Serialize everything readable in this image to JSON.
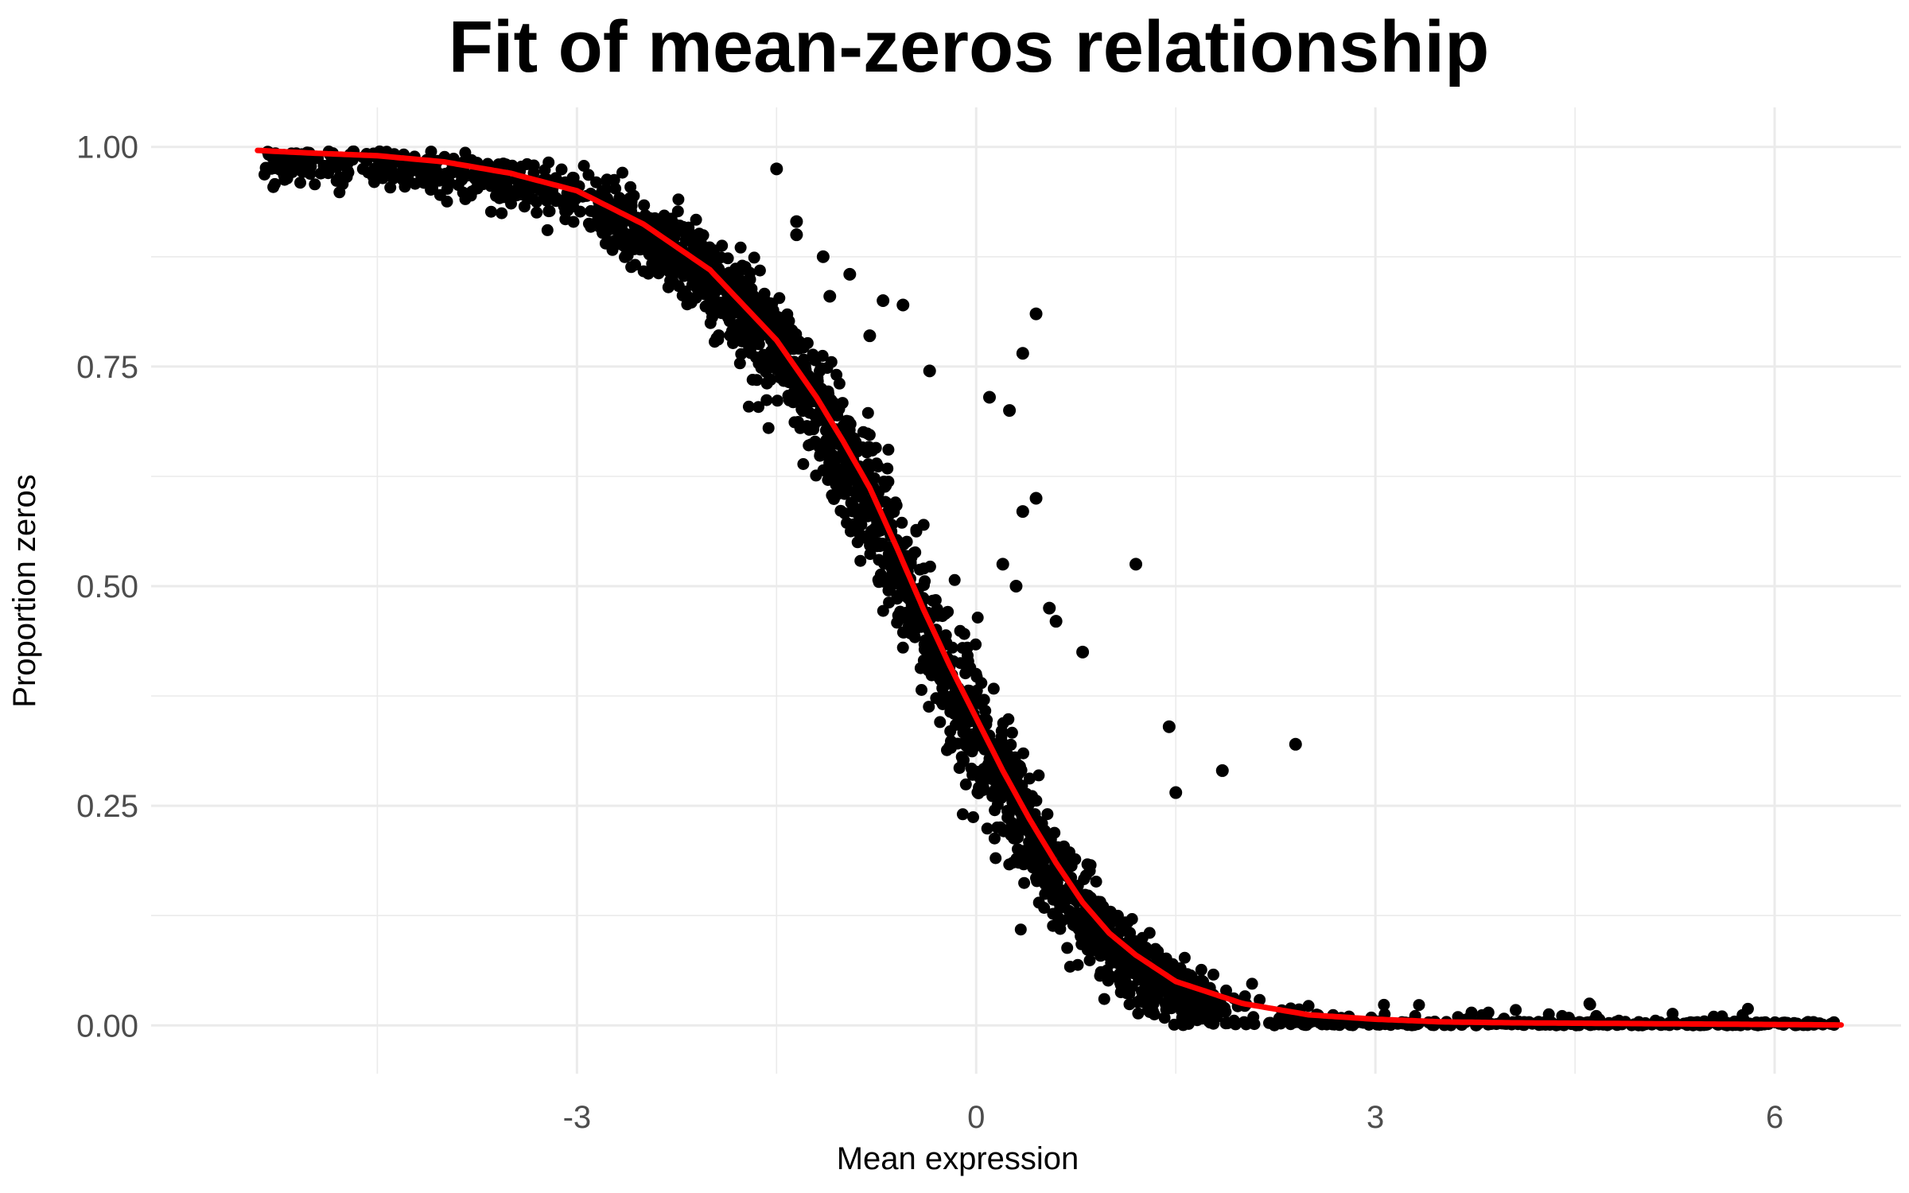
{
  "chart_data": {
    "type": "scatter",
    "title": "Fit of mean-zeros relationship",
    "xlabel": "Mean expression",
    "ylabel": "Proportion zeros",
    "xlim": [
      -6.2,
      6.95
    ],
    "ylim": [
      -0.055,
      1.045
    ],
    "x_ticks": [
      -3,
      0,
      3,
      6
    ],
    "x_tick_labels": [
      "-3",
      "0",
      "3",
      "6"
    ],
    "y_ticks": [
      0,
      0.25,
      0.5,
      0.75,
      1
    ],
    "y_tick_labels": [
      "0.00",
      "0.25",
      "0.50",
      "0.75",
      "1.00"
    ],
    "grid": true,
    "colors": {
      "points": "#000000",
      "fit": "#ff0000",
      "grid": "#ebebeb"
    },
    "fit_curve": {
      "name": "",
      "x": [
        -5.4,
        -5,
        -4.5,
        -4,
        -3.5,
        -3,
        -2.5,
        -2,
        -1.5,
        -1.2,
        -1,
        -0.8,
        -0.6,
        -0.4,
        -0.2,
        0,
        0.2,
        0.4,
        0.6,
        0.8,
        1,
        1.2,
        1.5,
        2,
        2.5,
        3,
        3.5,
        4,
        5,
        6,
        6.5
      ],
      "y": [
        0.996,
        0.993,
        0.99,
        0.983,
        0.97,
        0.95,
        0.912,
        0.86,
        0.78,
        0.715,
        0.665,
        0.612,
        0.545,
        0.475,
        0.41,
        0.35,
        0.29,
        0.235,
        0.185,
        0.14,
        0.105,
        0.08,
        0.05,
        0.025,
        0.012,
        0.007,
        0.004,
        0.003,
        0.002,
        0.001,
        0.0005
      ]
    },
    "outliers": {
      "x": [
        -1.5,
        -1.35,
        -1.35,
        -1.15,
        -1.1,
        -0.95,
        -0.8,
        -0.7,
        -0.55,
        -0.35,
        0.1,
        0.25,
        0.35,
        0.45,
        0.45,
        0.35,
        0.55,
        0.6,
        0.8,
        1.2,
        1.45,
        1.5,
        1.85,
        2.4,
        0.2,
        0.3
      ],
      "y": [
        0.975,
        0.915,
        0.9,
        0.875,
        0.83,
        0.855,
        0.785,
        0.825,
        0.82,
        0.745,
        0.715,
        0.7,
        0.765,
        0.81,
        0.6,
        0.585,
        0.475,
        0.46,
        0.425,
        0.525,
        0.34,
        0.265,
        0.29,
        0.32,
        0.525,
        0.5
      ]
    }
  }
}
